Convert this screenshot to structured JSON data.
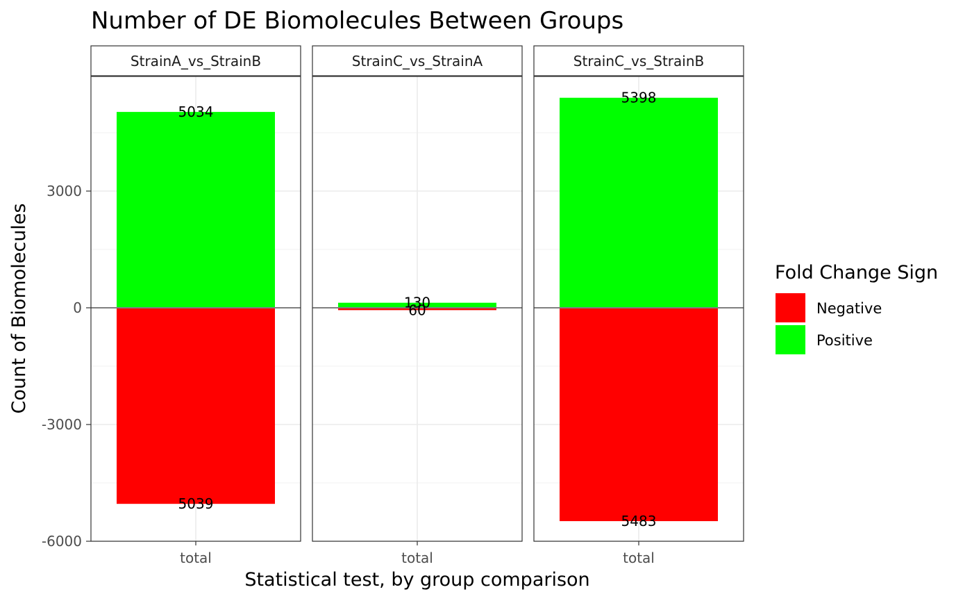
{
  "chart_data": {
    "type": "bar",
    "title": "Number of DE Biomolecules Between Groups",
    "xlabel": "Statistical test, by group comparison",
    "ylabel": "Count of Biomolecules",
    "ylim": [
      -6000,
      6000
    ],
    "y_ticks": [
      -6000,
      -3000,
      0,
      3000
    ],
    "y_tick_labels": [
      "-6000",
      "-3000",
      "0",
      "3000"
    ],
    "grid": true,
    "legend": {
      "title": "Fold Change Sign",
      "placement": "right",
      "entries": [
        {
          "name": "Negative",
          "color": "#ff0000"
        },
        {
          "name": "Positive",
          "color": "#00ff00"
        }
      ]
    },
    "facets": [
      {
        "label": "StrainA_vs_StrainB",
        "category": "total",
        "positive": 5034,
        "negative": -5039,
        "positive_label": "5034",
        "negative_label": "5039"
      },
      {
        "label": "StrainC_vs_StrainA",
        "category": "total",
        "positive": 130,
        "negative": -60,
        "positive_label": "130",
        "negative_label": "60"
      },
      {
        "label": "StrainC_vs_StrainB",
        "category": "total",
        "positive": 5398,
        "negative": -5483,
        "positive_label": "5398",
        "negative_label": "5483"
      }
    ]
  }
}
